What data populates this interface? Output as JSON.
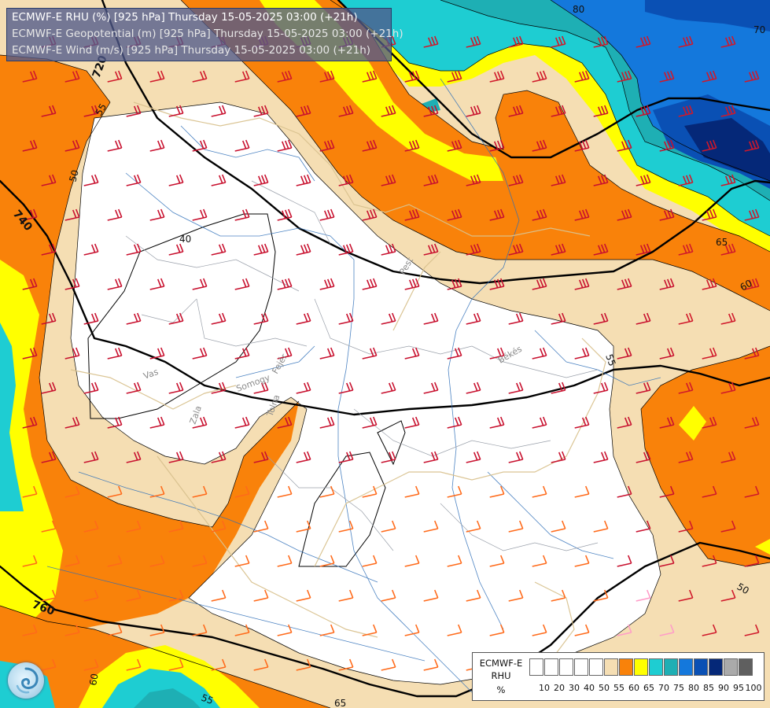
{
  "titles": [
    "ECMWF-E RHU (%) [925 hPa] Thursday 15-05-2025 03:00 (+21h)",
    "ECMWF-E Geopotential (m) [925 hPa] Thursday 15-05-2025 03:00 (+21h)",
    "ECMWF-E Wind (m/s) [925 hPa] Thursday 15-05-2025 03:00 (+21h)"
  ],
  "legend": {
    "label_lines": [
      "ECMWF-E",
      "RHU",
      "%"
    ],
    "ticks": [
      "10",
      "20",
      "30",
      "40",
      "50",
      "55",
      "60",
      "65",
      "70",
      "75",
      "80",
      "85",
      "90",
      "95",
      "100"
    ],
    "colors": [
      "#ffffff",
      "#ffffff",
      "#ffffff",
      "#ffffff",
      "#ffffff",
      "#f5deb3",
      "#f9820a",
      "#ffff00",
      "#1ecdd2",
      "#1eafb4",
      "#1478dc",
      "#0a50b4",
      "#052878",
      "#aaaaaa",
      "#5f5f5f"
    ]
  },
  "contour_labels": {
    "rhu": [
      "80",
      "70",
      "55",
      "50",
      "40",
      "65",
      "60",
      "55",
      "50",
      "60",
      "55",
      "65",
      "70",
      "60"
    ],
    "geopotential": [
      "720",
      "740",
      "760"
    ]
  },
  "place_labels": [
    "Pest",
    "Vas",
    "Somogy",
    "Fejér",
    "Zala",
    "Tolna",
    "Békés"
  ],
  "palette": {
    "white": "#ffffff",
    "wheat": "#f5deb3",
    "orange": "#f9820a",
    "yellow": "#ffff00",
    "cyan": "#1ecdd2",
    "teal": "#1eafb4",
    "blue": "#1478dc",
    "darkblue": "#0a50b4",
    "navy": "#052878"
  }
}
